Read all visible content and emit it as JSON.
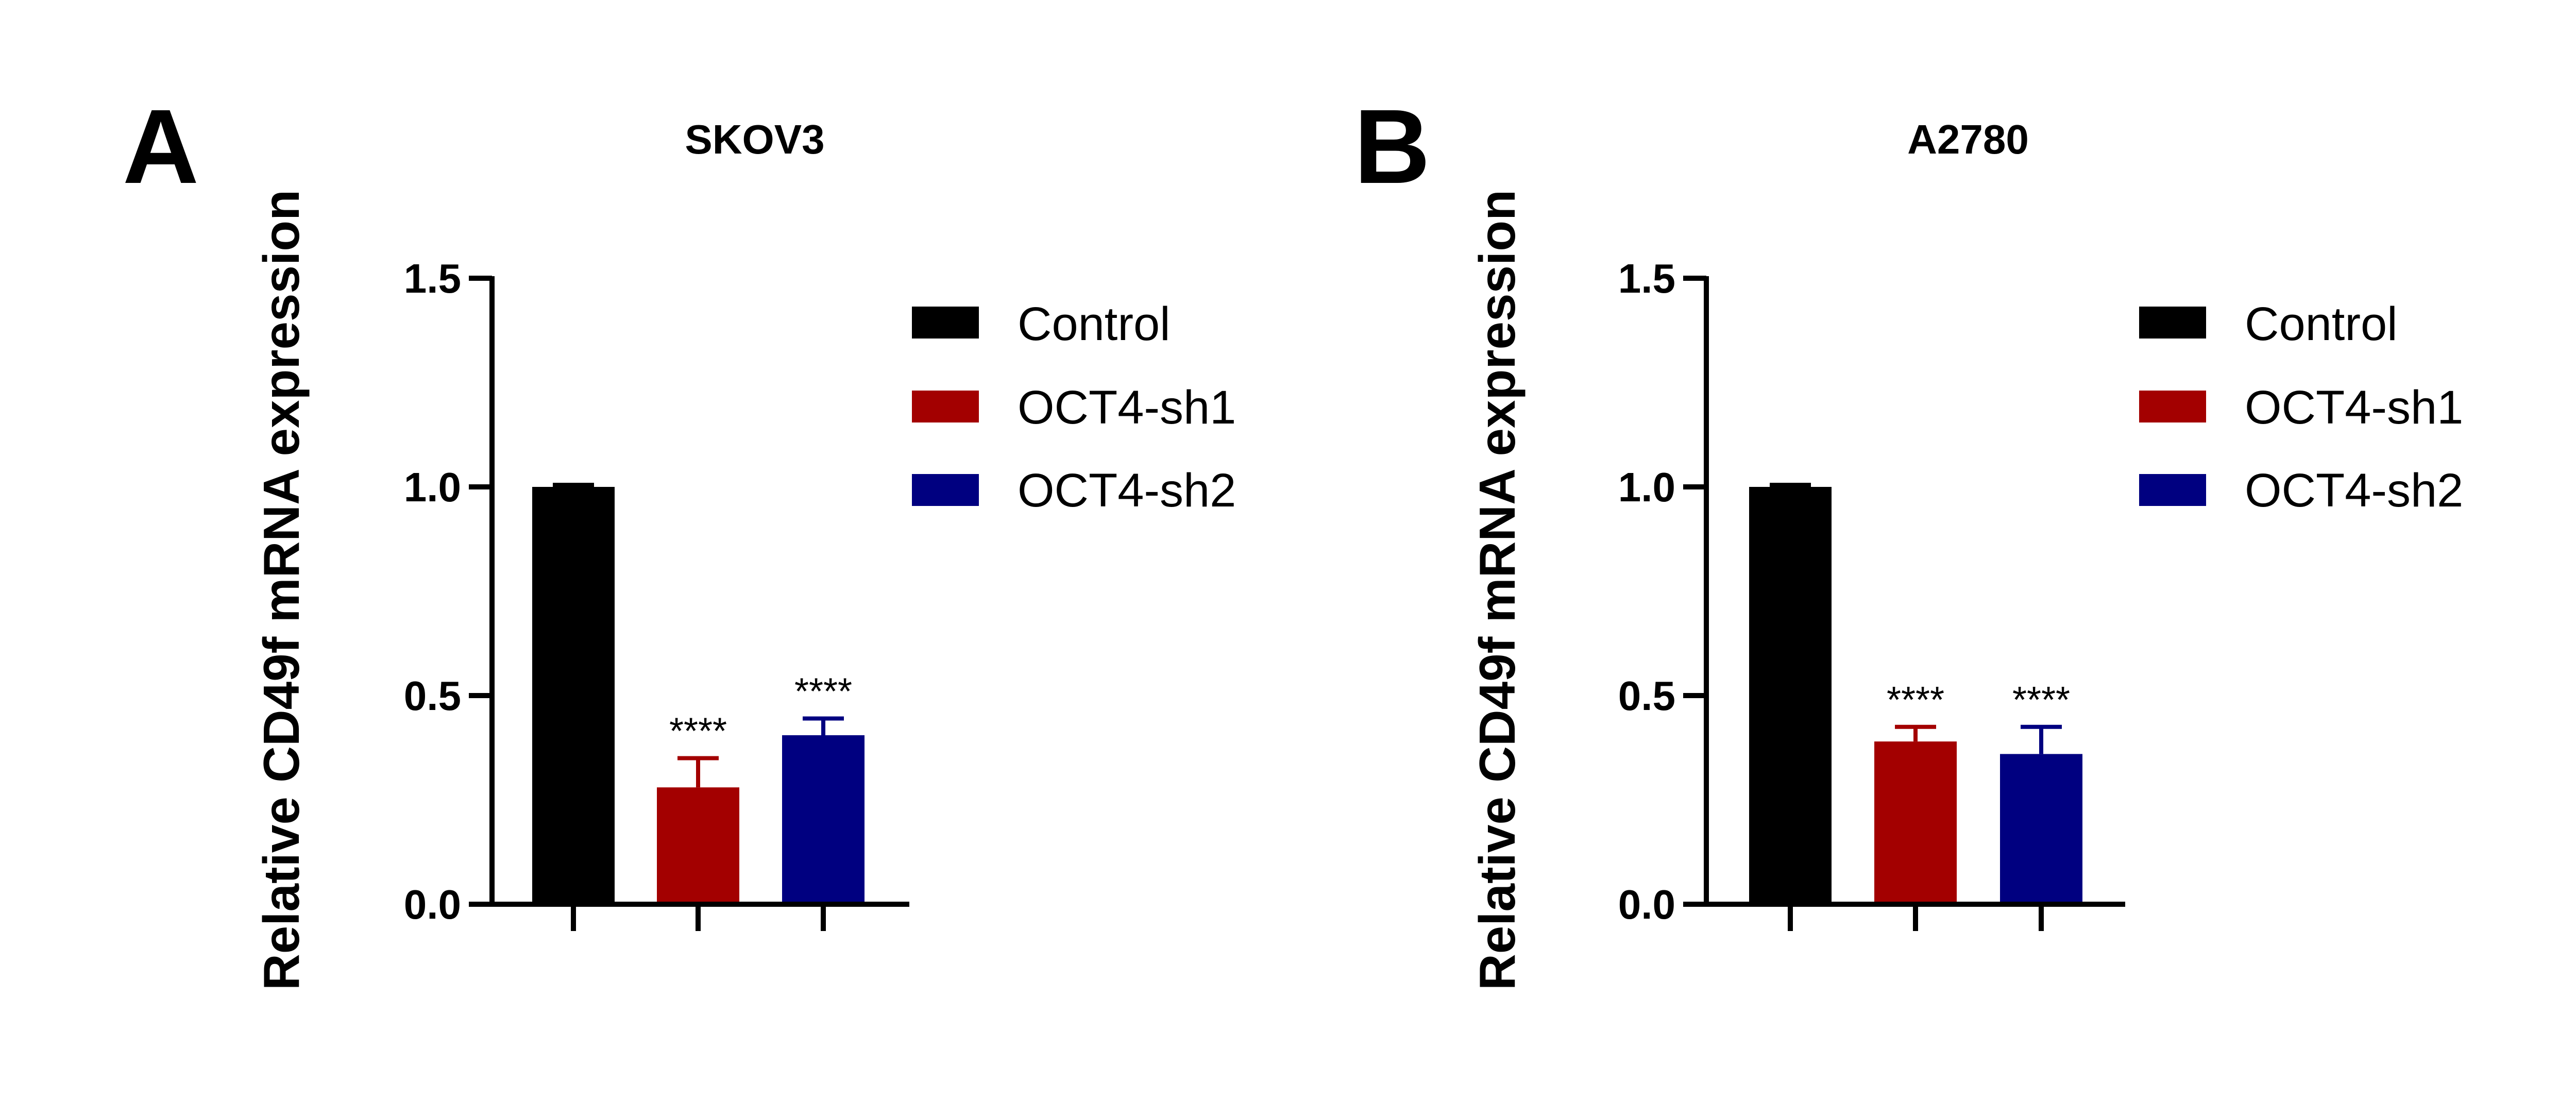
{
  "chart_data": [
    {
      "panel": "A",
      "type": "bar",
      "title": "SKOV3",
      "ylabel": "Relative CD49f mRNA expression",
      "xlabel": "",
      "ylim": [
        0,
        1.5
      ],
      "yticks": [
        "0.0",
        "0.5",
        "1.0",
        "1.5"
      ],
      "categories": [
        "Control",
        "OCT4-sh1",
        "OCT4-sh2"
      ],
      "values": [
        1.0,
        0.28,
        0.405
      ],
      "errors": [
        0.005,
        0.07,
        0.04
      ],
      "significance": [
        "",
        "****",
        "****"
      ],
      "colors": [
        "#000000",
        "#a30000",
        "#000080"
      ],
      "legend": [
        "Control",
        "OCT4-sh1",
        "OCT4-sh2"
      ]
    },
    {
      "panel": "B",
      "type": "bar",
      "title": "A2780",
      "ylabel": "Relative CD49f mRNA expression",
      "xlabel": "",
      "ylim": [
        0,
        1.5
      ],
      "yticks": [
        "0.0",
        "0.5",
        "1.0",
        "1.5"
      ],
      "categories": [
        "Control",
        "OCT4-sh1",
        "OCT4-sh2"
      ],
      "values": [
        1.0,
        0.39,
        0.36
      ],
      "errors": [
        0.005,
        0.035,
        0.065
      ],
      "significance": [
        "",
        "****",
        "****"
      ],
      "colors": [
        "#000000",
        "#a30000",
        "#000080"
      ],
      "legend": [
        "Control",
        "OCT4-sh1",
        "OCT4-sh2"
      ]
    }
  ]
}
